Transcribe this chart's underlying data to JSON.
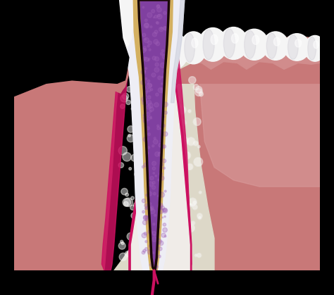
{
  "background_color": "#000000",
  "gum_pink": "#c87878",
  "gum_light": "#d49090",
  "gum_dark_border": "#cc1060",
  "bone_color": "#ddd8c8",
  "bone_white": "#f0ece0",
  "enamel_white": "#eeeef5",
  "enamel_shadow": "#c8ccd8",
  "dentin_yellow": "#d4b060",
  "dentin_light": "#e0c878",
  "pulp_purple": "#8040a0",
  "pulp_light": "#a060b8",
  "pulp_dark": "#602880",
  "canal_dark": "#1a0808",
  "perio_white": "#f0ece8",
  "nerve_magenta": "#cc1060",
  "tooth_crown_white": "#f5f5f5",
  "tooth_shadow": "#c0bcc8",
  "tooth_highlight": "#ffffff",
  "gum_right_main": "#c87878",
  "gum_right_light": "#dba0a0",
  "black": "#000000"
}
